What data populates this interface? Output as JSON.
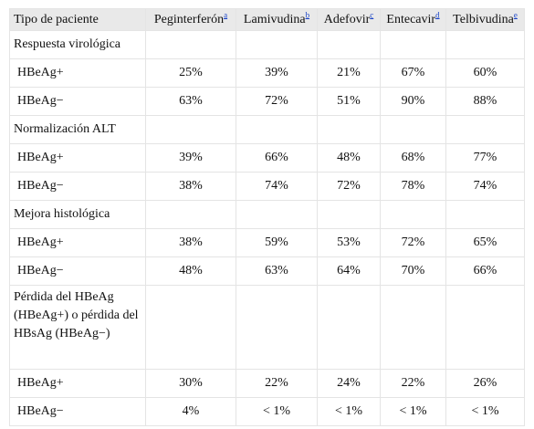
{
  "table": {
    "headers": [
      {
        "label": "Tipo de paciente",
        "sup": ""
      },
      {
        "label": "Peginterferón",
        "sup": "a"
      },
      {
        "label": "Lamivudina",
        "sup": "b"
      },
      {
        "label": "Adefovir",
        "sup": "c"
      },
      {
        "label": "Entecavir",
        "sup": "d"
      },
      {
        "label": "Telbivudina",
        "sup": "e"
      }
    ],
    "sections": [
      {
        "title": "Respuesta virológica",
        "rows": [
          {
            "label": "HBeAg+",
            "values": [
              "25%",
              "39%",
              "21%",
              "67%",
              "60%"
            ]
          },
          {
            "label": "HBeAg−",
            "values": [
              "63%",
              "72%",
              "51%",
              "90%",
              "88%"
            ]
          }
        ]
      },
      {
        "title": "Normalización ALT",
        "rows": [
          {
            "label": "HBeAg+",
            "values": [
              "39%",
              "66%",
              "48%",
              "68%",
              "77%"
            ]
          },
          {
            "label": "HBeAg−",
            "values": [
              "38%",
              "74%",
              "72%",
              "78%",
              "74%"
            ]
          }
        ]
      },
      {
        "title": "Mejora histológica",
        "rows": [
          {
            "label": "HBeAg+",
            "values": [
              "38%",
              "59%",
              "53%",
              "72%",
              "65%"
            ]
          },
          {
            "label": "HBeAg−",
            "values": [
              "48%",
              "63%",
              "64%",
              "70%",
              "66%"
            ]
          }
        ]
      },
      {
        "title": "Pérdida del HBeAg (HBeAg+) o pérdida del HBsAg (HBeAg−)",
        "rows": [
          {
            "label": "HBeAg+",
            "values": [
              "30%",
              "22%",
              "24%",
              "22%",
              "26%"
            ]
          },
          {
            "label": "HBeAg−",
            "values": [
              "4%",
              "< 1%",
              "< 1%",
              "< 1%",
              "< 1%"
            ]
          }
        ]
      }
    ]
  },
  "colors": {
    "header_bg": "#e9e9e9",
    "border": "#e4e4e4",
    "link": "#1a44c8"
  }
}
